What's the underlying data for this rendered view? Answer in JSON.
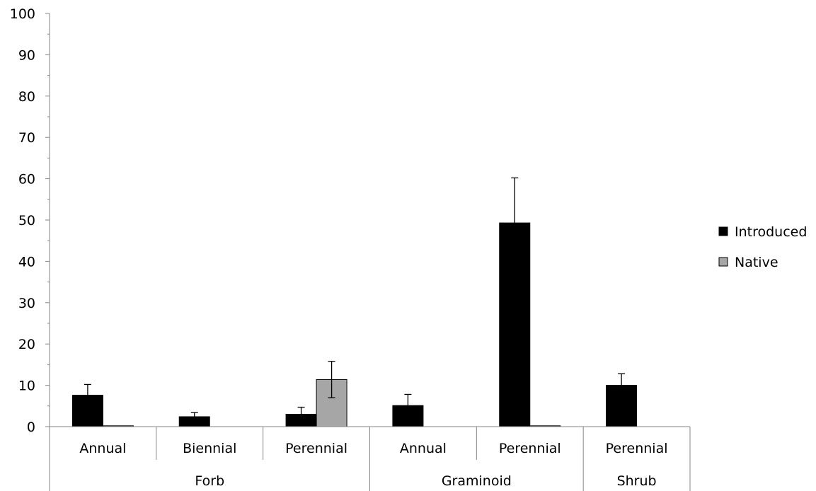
{
  "chart_data": {
    "type": "bar",
    "categories": [
      {
        "sub": "Annual",
        "group": "Forb"
      },
      {
        "sub": "Biennial",
        "group": "Forb"
      },
      {
        "sub": "Perennial",
        "group": "Forb"
      },
      {
        "sub": "Annual",
        "group": "Graminoid"
      },
      {
        "sub": "Perennial",
        "group": "Graminoid"
      },
      {
        "sub": "Perennial",
        "group": "Shrub"
      }
    ],
    "groups": [
      "Forb",
      "Graminoid",
      "Shrub"
    ],
    "series": [
      {
        "name": "Introduced",
        "color": "#000000",
        "values": [
          7.6,
          2.4,
          3.0,
          5.1,
          49.3,
          10.0
        ],
        "errors": [
          2.6,
          1.0,
          1.7,
          2.7,
          10.9,
          2.8
        ]
      },
      {
        "name": "Native",
        "color": "#a6a6a6",
        "values": [
          0.2,
          null,
          11.4,
          null,
          0.2,
          null
        ],
        "errors": [
          null,
          null,
          4.4,
          null,
          null,
          null
        ]
      }
    ],
    "ylim": [
      0,
      100
    ],
    "yticks": [
      0,
      10,
      20,
      30,
      40,
      50,
      60,
      70,
      80,
      90,
      100
    ],
    "grid": false,
    "legend": "right",
    "title": "",
    "xlabel": "",
    "ylabel": ""
  }
}
